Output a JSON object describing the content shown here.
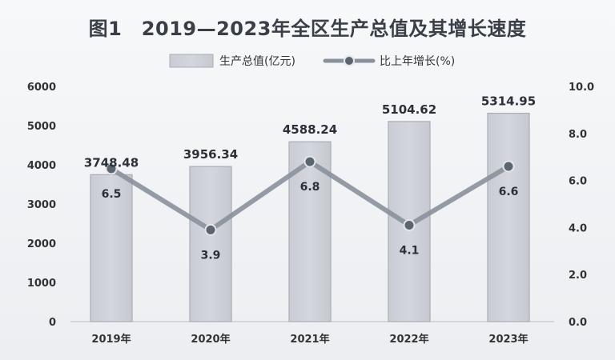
{
  "chart_data": {
    "type": "bar",
    "title": "图1　2019—2023年全区生产总值及其增长速度",
    "categories": [
      "2019年",
      "2020年",
      "2021年",
      "2022年",
      "2023年"
    ],
    "series": [
      {
        "name": "生产总值(亿元)",
        "type": "bar",
        "axis": "left",
        "values": [
          3748.48,
          3956.34,
          4588.24,
          5104.62,
          5314.95
        ],
        "labels": [
          "3748.48",
          "3956.34",
          "4588.24",
          "5104.62",
          "5314.95"
        ]
      },
      {
        "name": "比上年增长(%)",
        "type": "line",
        "axis": "right",
        "values": [
          6.5,
          3.9,
          6.8,
          4.1,
          6.6
        ],
        "labels": [
          "6.5",
          "3.9",
          "6.8",
          "4.1",
          "6.6"
        ]
      }
    ],
    "y_left": {
      "min": 0,
      "max": 6000,
      "ticks": [
        "0",
        "1000",
        "2000",
        "3000",
        "4000",
        "5000",
        "6000"
      ]
    },
    "y_right": {
      "min": 0,
      "max": 10,
      "ticks": [
        "0.0",
        "2.0",
        "4.0",
        "6.0",
        "8.0",
        "10.0"
      ]
    },
    "legend": {
      "position": "top-center"
    },
    "grid": false,
    "colors": {
      "bar_fill": "#d3d6dd",
      "bar_stroke": "#a9adb6",
      "line": "#8a919c",
      "marker": "#5c6470"
    }
  }
}
